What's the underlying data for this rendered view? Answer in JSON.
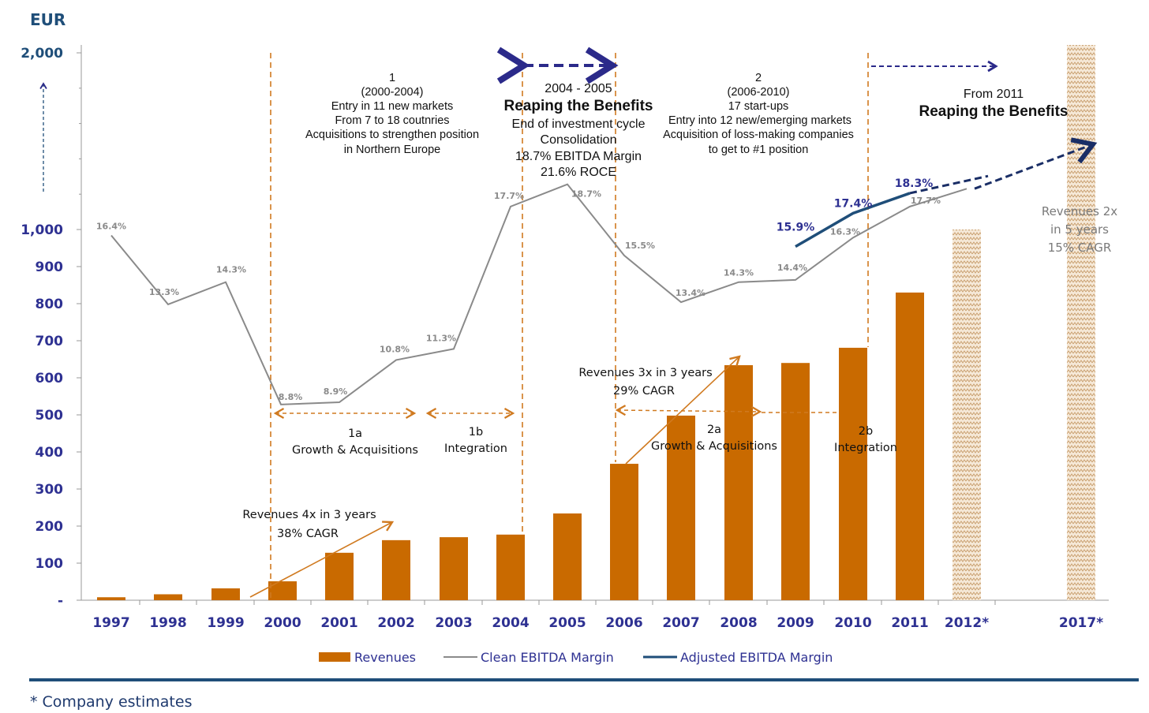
{
  "chart_data": {
    "type": "bar",
    "unit_label": "EUR",
    "categories": [
      "1997",
      "1998",
      "1999",
      "2000",
      "2001",
      "2002",
      "2003",
      "2004",
      "2005",
      "2006",
      "2007",
      "2008",
      "2009",
      "2010",
      "2011",
      "2012*",
      "2017*"
    ],
    "y_tick_labels": [
      "-",
      "100",
      "200",
      "300",
      "400",
      "500",
      "600",
      "700",
      "800",
      "900",
      "1,000",
      "2,000"
    ],
    "ylim": [
      0,
      2000
    ],
    "axis_note": "Axis is broken between 1,000 and 2,000",
    "series": [
      {
        "name": "Revenues",
        "type": "bar",
        "color": "#c96a00",
        "values": [
          8,
          16,
          32,
          51,
          128,
          162,
          170,
          177,
          234,
          368,
          498,
          634,
          640,
          681,
          830,
          1000,
          2000
        ],
        "estimated": [
          false,
          false,
          false,
          false,
          false,
          false,
          false,
          false,
          false,
          false,
          false,
          false,
          false,
          false,
          false,
          true,
          true
        ]
      },
      {
        "name": "Clean EBITDA Margin",
        "type": "line",
        "color": "#8a8a8a",
        "unit": "%",
        "values": [
          16.4,
          13.3,
          14.3,
          8.8,
          8.9,
          10.8,
          11.3,
          17.7,
          18.7,
          15.5,
          13.4,
          14.3,
          14.4,
          16.3,
          17.7,
          18.5,
          null
        ],
        "labels": [
          "16.4%",
          "13.3%",
          "14.3%",
          "8.8%",
          "8.9%",
          "10.8%",
          "11.3%",
          "17.7%",
          "18.7%",
          "15.5%",
          "13.4%",
          "14.3%",
          "14.4%",
          "16.3%",
          "17.7%",
          "",
          ""
        ]
      },
      {
        "name": "Adjusted EBITDA Margin",
        "type": "line",
        "color": "#1f4e79",
        "unit": "%",
        "values": [
          null,
          null,
          null,
          null,
          null,
          null,
          null,
          null,
          null,
          null,
          null,
          null,
          15.9,
          17.4,
          18.3,
          19.0,
          20.5
        ],
        "labels": [
          "",
          "",
          "",
          "",
          "",
          "",
          "",
          "",
          "",
          "",
          "",
          "",
          "15.9%",
          "17.4%",
          "18.3%",
          "",
          ""
        ]
      }
    ],
    "legend": [
      "Revenues",
      "Clean EBITDA Margin",
      "Adjusted EBITDA Margin"
    ],
    "legend_position": "bottom",
    "annotations": {
      "phase1": [
        "1",
        "(2000-2004)",
        "Entry in 11 new markets",
        "From 7 to 18 coutnries",
        "Acquisitions to strengthen position",
        "in Northern Europe"
      ],
      "reaping1": {
        "years": "2004 - 2005",
        "title": "Reaping the Benefits",
        "lines": [
          "End of investment  cycle",
          "Consolidation",
          "18.7% EBITDA Margin",
          "21.6% ROCE"
        ]
      },
      "phase2": [
        "2",
        "(2006-2010)",
        "17 start-ups",
        "Entry into  12 new/emerging markets",
        "Acquisition of loss-making companies",
        "to get to #1 position"
      ],
      "reaping2": {
        "from": "From 2011",
        "title": "Reaping the Benefits"
      },
      "forecast": [
        "Revenues 2x",
        "in 5 years",
        "15% CAGR"
      ],
      "growth1": [
        "Revenues 4x in 3 years",
        "38% CAGR"
      ],
      "growth2": [
        "Revenues 3x in 3 years",
        "29% CAGR"
      ],
      "phase1a": [
        "1a",
        "Growth  & Acquisitions"
      ],
      "phase1b": [
        "1b",
        "Integration"
      ],
      "phase2a": [
        "2a",
        "Growth  & Acquisitions"
      ],
      "phase2b": [
        "2b",
        "Integration"
      ]
    },
    "footnote": "* Company estimates"
  }
}
